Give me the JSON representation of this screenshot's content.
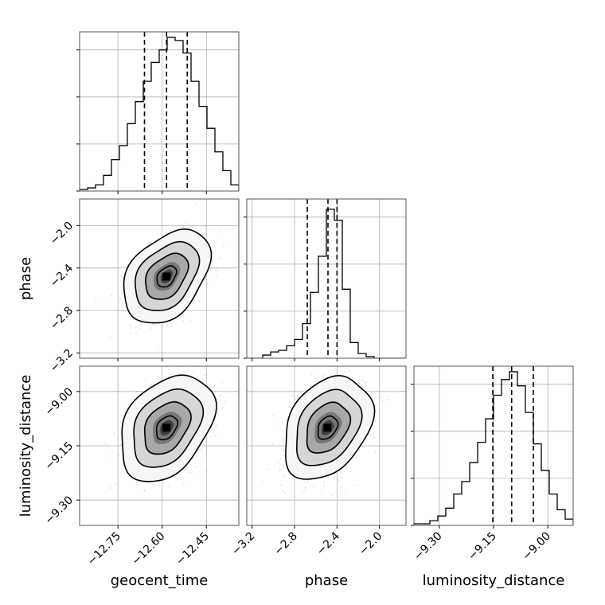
{
  "chart_data": {
    "type": "corner",
    "parameters": [
      {
        "name": "geocent_time",
        "label": "geocent_time",
        "range": [
          -12.88,
          -12.34
        ],
        "ticks": [
          -12.75,
          -12.6,
          -12.45
        ],
        "tick_labels": [
          "−12.75",
          "−12.60",
          "−12.45"
        ],
        "median": -12.585,
        "quantiles": [
          -12.66,
          -12.515
        ],
        "histogram": {
          "edges": [
            -12.88,
            -12.853,
            -12.826,
            -12.799,
            -12.772,
            -12.745,
            -12.718,
            -12.691,
            -12.664,
            -12.637,
            -12.61,
            -12.583,
            -12.556,
            -12.529,
            -12.502,
            -12.475,
            -12.448,
            -12.421,
            -12.394,
            -12.367,
            -12.34
          ],
          "counts": [
            0.01,
            0.02,
            0.04,
            0.1,
            0.2,
            0.29,
            0.43,
            0.57,
            0.7,
            0.82,
            0.9,
            0.98,
            0.96,
            0.88,
            0.7,
            0.54,
            0.4,
            0.25,
            0.13,
            0.04
          ]
        }
      },
      {
        "name": "phase",
        "label": "phase",
        "range": [
          -3.25,
          -1.75
        ],
        "ticks": [
          -3.2,
          -2.8,
          -2.4,
          -2.0
        ],
        "tick_labels": [
          "−3.2",
          "−2.8",
          "−2.4",
          "−2.0"
        ],
        "median": -2.485,
        "quantiles": [
          -2.68,
          -2.4
        ],
        "histogram": {
          "edges": [
            -3.25,
            -3.175,
            -3.1,
            -3.025,
            -2.95,
            -2.875,
            -2.8,
            -2.725,
            -2.65,
            -2.575,
            -2.5,
            -2.425,
            -2.35,
            -2.275,
            -2.2,
            -2.125,
            -2.05,
            -1.975,
            -1.9,
            -1.825,
            -1.75
          ],
          "counts": [
            0.0,
            0.0,
            0.02,
            0.04,
            0.05,
            0.08,
            0.12,
            0.22,
            0.42,
            0.65,
            0.95,
            0.88,
            0.44,
            0.1,
            0.03,
            0.01,
            0.0,
            0.0,
            0.0,
            0.0
          ]
        }
      },
      {
        "name": "luminosity_distance",
        "label": "luminosity_distance",
        "range": [
          -9.37,
          -8.93
        ],
        "ticks": [
          -9.3,
          -9.15,
          -9.0
        ],
        "tick_labels": [
          "−9.30",
          "−9.15",
          "−9.00"
        ],
        "median": -9.1,
        "quantiles": [
          -9.152,
          -9.04
        ],
        "histogram": {
          "edges": [
            -9.37,
            -9.348,
            -9.326,
            -9.304,
            -9.282,
            -9.26,
            -9.238,
            -9.216,
            -9.194,
            -9.172,
            -9.15,
            -9.128,
            -9.106,
            -9.084,
            -9.062,
            -9.04,
            -9.018,
            -8.996,
            -8.974,
            -8.952,
            -8.93
          ],
          "counts": [
            0.01,
            0.01,
            0.03,
            0.06,
            0.11,
            0.2,
            0.28,
            0.4,
            0.53,
            0.68,
            0.83,
            0.93,
            0.98,
            0.89,
            0.72,
            0.52,
            0.35,
            0.2,
            0.1,
            0.04
          ]
        }
      }
    ],
    "pairs": [
      {
        "x": "geocent_time",
        "y": "phase",
        "center": [
          -12.585,
          -2.48
        ],
        "sigma": [
          0.06,
          0.18
        ],
        "rho": 0.38
      },
      {
        "x": "geocent_time",
        "y": "luminosity_distance",
        "center": [
          -12.585,
          -9.1
        ],
        "sigma": [
          0.065,
          0.06
        ],
        "rho": 0.35
      },
      {
        "x": "phase",
        "y": "luminosity_distance",
        "center": [
          -2.49,
          -9.1
        ],
        "sigma": [
          0.17,
          0.058
        ],
        "rho": 0.32
      }
    ],
    "grid": true,
    "colors": {
      "line": "#000000",
      "grid": "#b0b0b0",
      "points": "#7f7f7f"
    }
  }
}
